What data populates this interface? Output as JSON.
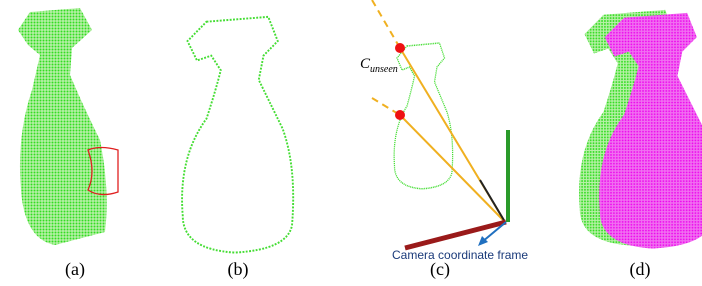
{
  "panels": [
    {
      "label": "(a)"
    },
    {
      "label": "(b)"
    },
    {
      "label": "(c)"
    },
    {
      "label": "(d)"
    }
  ],
  "annotations": {
    "c_symbol": "C",
    "c_subscript": "unseen",
    "camera_label": "Camera coordinate frame"
  }
}
